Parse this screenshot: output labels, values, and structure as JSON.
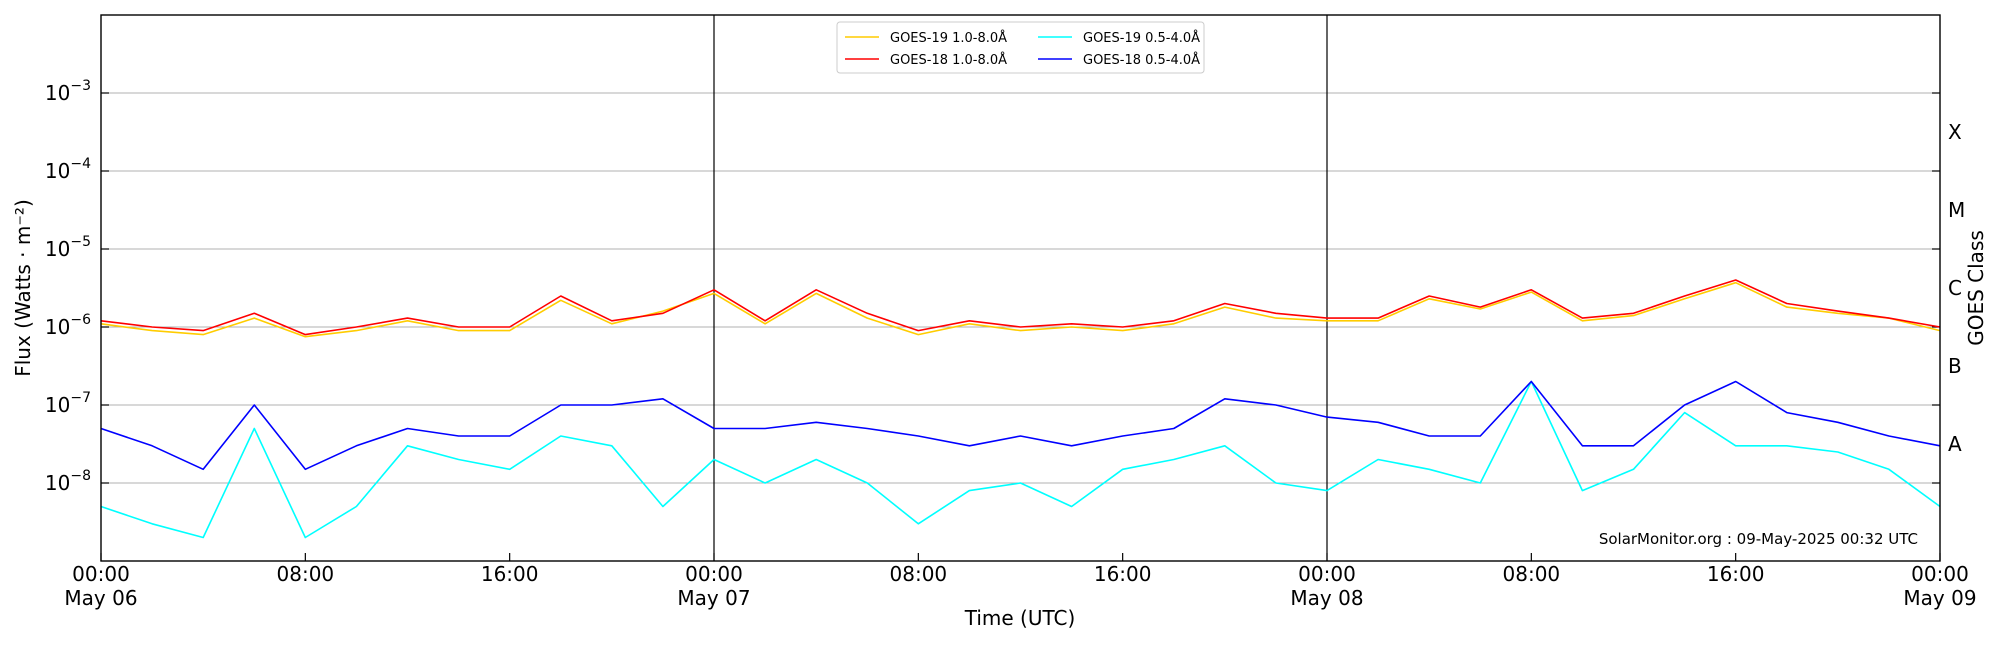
{
  "chart_data": {
    "type": "line",
    "xlabel": "Time (UTC)",
    "ylabel": "Flux (Watts · m⁻²)",
    "y2label": "GOES Class",
    "annotation": "SolarMonitor.org : 09-May-2025 00:32 UTC",
    "yscale": "log",
    "grid": true,
    "legend": "upper center",
    "x": [
      "May 06 00:00",
      "May 06 02:00",
      "May 06 04:00",
      "May 06 06:00",
      "May 06 08:00",
      "May 06 10:00",
      "May 06 12:00",
      "May 06 14:00",
      "May 06 16:00",
      "May 06 18:00",
      "May 06 20:00",
      "May 06 22:00",
      "May 07 00:00",
      "May 07 02:00",
      "May 07 04:00",
      "May 07 06:00",
      "May 07 08:00",
      "May 07 10:00",
      "May 07 12:00",
      "May 07 14:00",
      "May 07 16:00",
      "May 07 18:00",
      "May 07 20:00",
      "May 07 22:00",
      "May 08 00:00",
      "May 08 02:00",
      "May 08 04:00",
      "May 08 06:00",
      "May 08 08:00",
      "May 08 10:00",
      "May 08 12:00",
      "May 08 14:00",
      "May 08 16:00",
      "May 08 18:00",
      "May 08 20:00",
      "May 08 22:00",
      "May 09 00:00"
    ],
    "series": [
      {
        "name": "GOES-19 1.0-8.0Å",
        "color": "#ffcc00",
        "values": [
          1.1e-06,
          9e-07,
          8e-07,
          1.3e-06,
          7.5e-07,
          9e-07,
          1.2e-06,
          9e-07,
          9e-07,
          2.2e-06,
          1.1e-06,
          1.6e-06,
          2.7e-06,
          1.1e-06,
          2.7e-06,
          1.3e-06,
          8e-07,
          1.1e-06,
          9e-07,
          1e-06,
          9e-07,
          1.1e-06,
          1.8e-06,
          1.3e-06,
          1.2e-06,
          1.2e-06,
          2.3e-06,
          1.7e-06,
          2.8e-06,
          1.2e-06,
          1.4e-06,
          2.3e-06,
          3.7e-06,
          1.8e-06,
          1.5e-06,
          1.3e-06,
          9e-07
        ]
      },
      {
        "name": "GOES-18 1.0-8.0Å",
        "color": "#ff0000",
        "values": [
          1.2e-06,
          1e-06,
          9e-07,
          1.5e-06,
          8e-07,
          1e-06,
          1.3e-06,
          1e-06,
          1e-06,
          2.5e-06,
          1.2e-06,
          1.5e-06,
          3e-06,
          1.2e-06,
          3e-06,
          1.5e-06,
          9e-07,
          1.2e-06,
          1e-06,
          1.1e-06,
          1e-06,
          1.2e-06,
          2e-06,
          1.5e-06,
          1.3e-06,
          1.3e-06,
          2.5e-06,
          1.8e-06,
          3e-06,
          1.3e-06,
          1.5e-06,
          2.5e-06,
          4e-06,
          2e-06,
          1.6e-06,
          1.3e-06,
          1e-06
        ]
      },
      {
        "name": "GOES-19 0.5-4.0Å",
        "color": "#00ffff",
        "values": [
          5e-09,
          3e-09,
          2e-09,
          5e-08,
          2e-09,
          5e-09,
          3e-08,
          2e-08,
          1.5e-08,
          4e-08,
          3e-08,
          5e-09,
          2e-08,
          1e-08,
          2e-08,
          1e-08,
          3e-09,
          8e-09,
          1e-08,
          5e-09,
          1.5e-08,
          2e-08,
          3e-08,
          1e-08,
          8e-09,
          2e-08,
          1.5e-08,
          1e-08,
          2e-07,
          8e-09,
          1.5e-08,
          8e-08,
          3e-08,
          3e-08,
          2.5e-08,
          1.5e-08,
          5e-09
        ]
      },
      {
        "name": "GOES-18 0.5-4.0Å",
        "color": "#0000ff",
        "values": [
          5e-08,
          3e-08,
          1.5e-08,
          1e-07,
          1.5e-08,
          3e-08,
          5e-08,
          4e-08,
          4e-08,
          1e-07,
          1e-07,
          1.2e-07,
          5e-08,
          5e-08,
          6e-08,
          5e-08,
          4e-08,
          3e-08,
          4e-08,
          3e-08,
          4e-08,
          5e-08,
          1.2e-07,
          1e-07,
          7e-08,
          6e-08,
          4e-08,
          4e-08,
          2e-07,
          3e-08,
          3e-08,
          1e-07,
          2e-07,
          8e-08,
          6e-08,
          4e-08,
          3e-08
        ]
      }
    ],
    "ylim": [
      1e-09,
      0.01
    ],
    "yticks": [
      {
        "value": 1e-08,
        "label": "10",
        "exponent": "−8"
      },
      {
        "value": 1e-07,
        "label": "10",
        "exponent": "−7"
      },
      {
        "value": 1e-06,
        "label": "10",
        "exponent": "−6"
      },
      {
        "value": 1e-05,
        "label": "10",
        "exponent": "−5"
      },
      {
        "value": 0.0001,
        "label": "10",
        "exponent": "−4"
      },
      {
        "value": 0.001,
        "label": "10",
        "exponent": "−3"
      }
    ],
    "y2ticks": [
      {
        "value": 3.162e-08,
        "label": "A"
      },
      {
        "value": 3.162e-07,
        "label": "B"
      },
      {
        "value": 3.162e-06,
        "label": "C"
      },
      {
        "value": 3.162e-05,
        "label": "M"
      },
      {
        "value": 0.0003162,
        "label": "X"
      }
    ],
    "xticks": [
      {
        "value": "May 06 00:00",
        "label": "00:00",
        "date": "May 06"
      },
      {
        "value": "May 06 08:00",
        "label": "08:00"
      },
      {
        "value": "May 06 16:00",
        "label": "16:00"
      },
      {
        "value": "May 07 00:00",
        "label": "00:00",
        "date": "May 07"
      },
      {
        "value": "May 07 08:00",
        "label": "08:00"
      },
      {
        "value": "May 07 16:00",
        "label": "16:00"
      },
      {
        "value": "May 08 00:00",
        "label": "00:00",
        "date": "May 08"
      },
      {
        "value": "May 08 08:00",
        "label": "08:00"
      },
      {
        "value": "May 08 16:00",
        "label": "16:00"
      },
      {
        "value": "May 09 00:00",
        "label": "00:00",
        "date": "May 09"
      }
    ],
    "day_lines": [
      "May 07 00:00",
      "May 08 00:00"
    ]
  }
}
